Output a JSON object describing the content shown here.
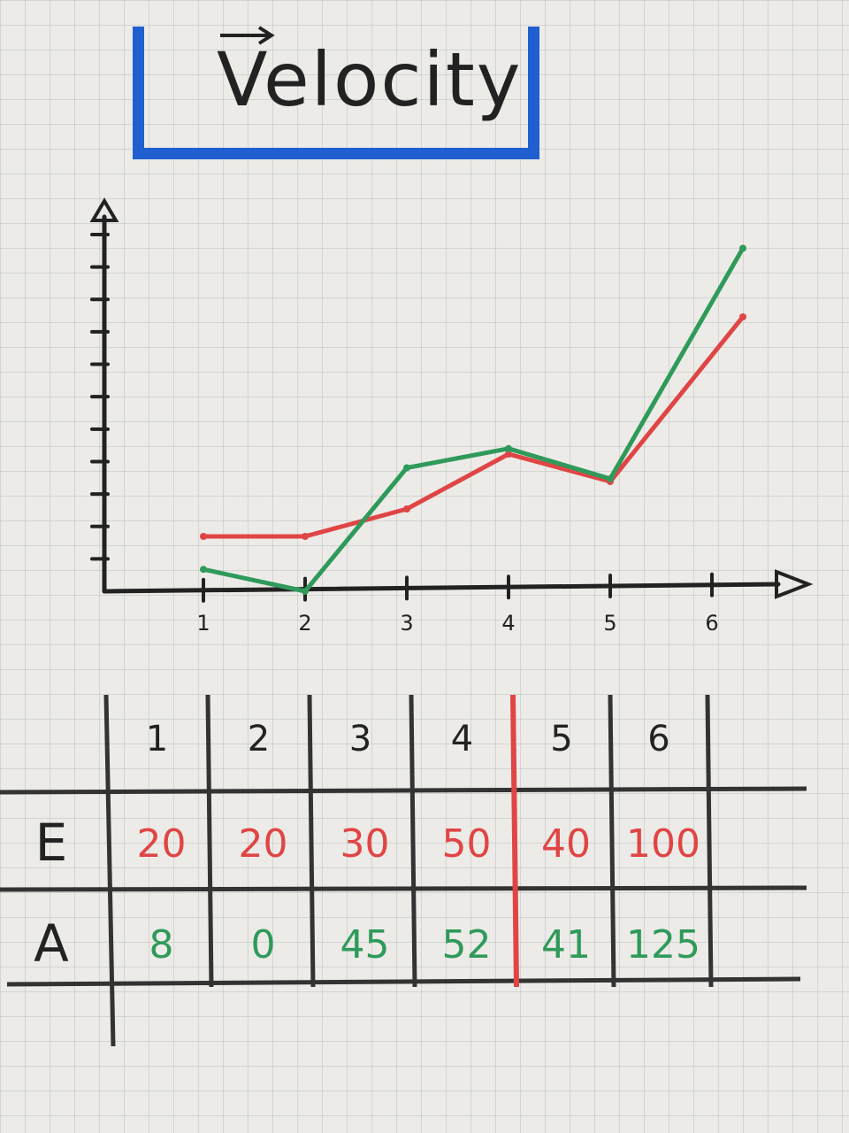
{
  "title": "Velocity",
  "colors": {
    "title_box": "#1f5fcf",
    "estimated": "#e04545",
    "actual": "#2f9a5a",
    "ink": "#222222"
  },
  "chart_data": {
    "type": "line",
    "title": "Velocity",
    "x": [
      1,
      2,
      3,
      4,
      5,
      6
    ],
    "x_tick_labels": [
      "1",
      "2",
      "3",
      "4",
      "5",
      "6"
    ],
    "ylim": [
      0,
      130
    ],
    "y_tick_count": 11,
    "grid": false,
    "series": [
      {
        "name": "E",
        "color": "#e04545",
        "values": [
          20,
          20,
          30,
          50,
          40,
          100
        ]
      },
      {
        "name": "A",
        "color": "#2f9a5a",
        "values": [
          8,
          0,
          45,
          52,
          41,
          125
        ]
      }
    ]
  },
  "table": {
    "columns": [
      "1",
      "2",
      "3",
      "4",
      "5",
      "6",
      ""
    ],
    "rows": [
      {
        "label": "E",
        "values": [
          "20",
          "20",
          "30",
          "50",
          "40",
          "100"
        ]
      },
      {
        "label": "A",
        "values": [
          "8",
          "0",
          "45",
          "52",
          "41",
          "125"
        ]
      }
    ]
  }
}
